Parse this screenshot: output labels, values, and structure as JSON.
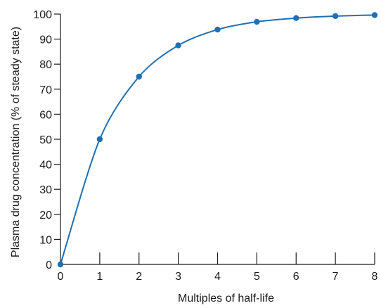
{
  "colors": {
    "series": "#1f6fb3",
    "axis": "#1a1a1a"
  },
  "chart_data": {
    "type": "line",
    "title": "",
    "xlabel": "Multiples of half-life",
    "ylabel": "Plasma drug concentration (% of steady state)",
    "x": [
      0,
      1,
      2,
      3,
      4,
      5,
      6,
      7,
      8
    ],
    "xticks": [
      "0",
      "1",
      "2",
      "3",
      "4",
      "5",
      "6",
      "7",
      "8"
    ],
    "yticks": [
      "0",
      "10",
      "20",
      "30",
      "40",
      "50",
      "60",
      "70",
      "80",
      "90",
      "100"
    ],
    "xlim": [
      0,
      8
    ],
    "ylim": [
      0,
      100
    ],
    "grid": false,
    "series": [
      {
        "values": [
          0,
          50,
          75,
          87.5,
          93.8,
          96.9,
          98.4,
          99.2,
          99.6
        ]
      }
    ]
  }
}
